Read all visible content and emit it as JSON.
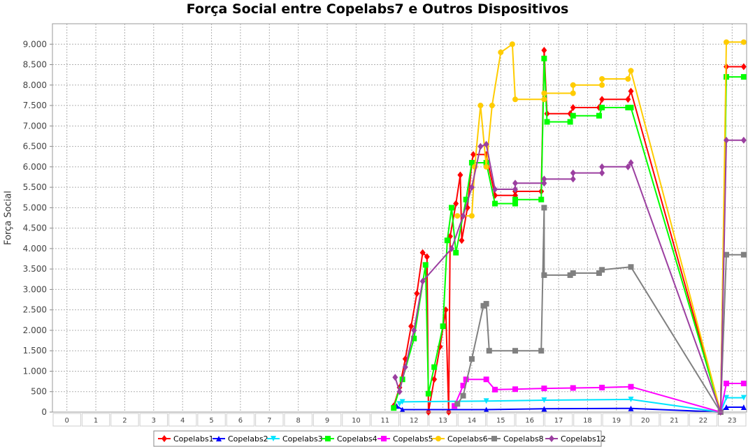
{
  "chart_data": {
    "type": "line",
    "title": "Força Social entre Copelabs7 e Outros Dispositivos",
    "xlabel": "",
    "ylabel": "Força Social",
    "xlim": [
      -0.5,
      23.5
    ],
    "ylim": [
      0,
      9500
    ],
    "x_ticks": [
      "0",
      "1",
      "2",
      "3",
      "4",
      "5",
      "6",
      "7",
      "8",
      "9",
      "10",
      "11",
      "12",
      "13",
      "14",
      "15",
      "16",
      "17",
      "18",
      "19",
      "20",
      "21",
      "22",
      "23"
    ],
    "y_ticks": [
      0,
      500,
      1000,
      1500,
      2000,
      2500,
      3000,
      3500,
      4000,
      4500,
      5000,
      5500,
      6000,
      6500,
      7000,
      7500,
      8000,
      8500,
      9000
    ],
    "y_tick_labels": [
      "0",
      "500",
      "1.000",
      "1.500",
      "2.000",
      "2.500",
      "3.000",
      "3.500",
      "4.000",
      "4.500",
      "5.000",
      "5.500",
      "6.000",
      "6.500",
      "7.000",
      "7.500",
      "8.000",
      "8.500",
      "9.000"
    ],
    "grid": true,
    "legend_position": "bottom",
    "series": [
      {
        "name": "Copelabs1",
        "color": "#ff0000",
        "marker": "diamond",
        "points": [
          [
            11.3,
            150
          ],
          [
            11.5,
            600
          ],
          [
            11.7,
            1300
          ],
          [
            11.9,
            2100
          ],
          [
            12.1,
            2900
          ],
          [
            12.3,
            3900
          ],
          [
            12.45,
            3800
          ],
          [
            12.5,
            0
          ],
          [
            12.7,
            800
          ],
          [
            12.9,
            1600
          ],
          [
            13.1,
            2500
          ],
          [
            13.2,
            0
          ],
          [
            13.25,
            4300
          ],
          [
            13.45,
            5100
          ],
          [
            13.6,
            5800
          ],
          [
            13.65,
            4200
          ],
          [
            13.85,
            5000
          ],
          [
            14.0,
            6100
          ],
          [
            14.05,
            6300
          ],
          [
            14.5,
            6300
          ],
          [
            14.8,
            5300
          ],
          [
            15.5,
            5300
          ],
          [
            15.5,
            5400
          ],
          [
            16.4,
            5400
          ],
          [
            16.5,
            8850
          ],
          [
            16.6,
            7300
          ],
          [
            17.4,
            7300
          ],
          [
            17.5,
            7450
          ],
          [
            18.4,
            7450
          ],
          [
            18.5,
            7650
          ],
          [
            19.4,
            7650
          ],
          [
            19.5,
            7850
          ],
          [
            22.6,
            0
          ],
          [
            22.8,
            8450
          ],
          [
            23.4,
            8450
          ]
        ]
      },
      {
        "name": "Copelabs2",
        "color": "#0000ff",
        "marker": "triangle",
        "points": [
          [
            11.4,
            150
          ],
          [
            11.6,
            60
          ],
          [
            14.5,
            60
          ],
          [
            16.5,
            80
          ],
          [
            19.5,
            90
          ],
          [
            22.6,
            0
          ],
          [
            22.8,
            120
          ],
          [
            23.4,
            120
          ]
        ]
      },
      {
        "name": "Copelabs3",
        "color": "#00e5ff",
        "marker": "triangle-down",
        "points": [
          [
            11.5,
            200
          ],
          [
            11.6,
            250
          ],
          [
            14.5,
            270
          ],
          [
            16.5,
            290
          ],
          [
            19.5,
            310
          ],
          [
            22.6,
            0
          ],
          [
            22.8,
            350
          ],
          [
            23.4,
            350
          ]
        ]
      },
      {
        "name": "Copelabs4",
        "color": "#00ff00",
        "marker": "square",
        "points": [
          [
            11.3,
            100
          ],
          [
            11.6,
            800
          ],
          [
            12.0,
            1800
          ],
          [
            12.4,
            3600
          ],
          [
            12.5,
            450
          ],
          [
            12.7,
            1100
          ],
          [
            13.0,
            2100
          ],
          [
            13.15,
            4200
          ],
          [
            13.3,
            5000
          ],
          [
            13.45,
            3900
          ],
          [
            13.8,
            5200
          ],
          [
            14.0,
            6100
          ],
          [
            14.5,
            6100
          ],
          [
            14.8,
            5100
          ],
          [
            15.5,
            5100
          ],
          [
            15.5,
            5200
          ],
          [
            16.4,
            5200
          ],
          [
            16.5,
            8650
          ],
          [
            16.6,
            7100
          ],
          [
            17.4,
            7100
          ],
          [
            17.5,
            7250
          ],
          [
            18.4,
            7250
          ],
          [
            18.5,
            7450
          ],
          [
            19.4,
            7450
          ],
          [
            19.5,
            7450
          ],
          [
            22.6,
            0
          ],
          [
            22.8,
            8200
          ],
          [
            23.4,
            8200
          ]
        ]
      },
      {
        "name": "Copelabs5",
        "color": "#ff00ff",
        "marker": "square",
        "points": [
          [
            13.4,
            150
          ],
          [
            13.7,
            650
          ],
          [
            13.8,
            800
          ],
          [
            14.5,
            800
          ],
          [
            14.8,
            550
          ],
          [
            15.5,
            560
          ],
          [
            16.5,
            580
          ],
          [
            17.5,
            590
          ],
          [
            18.5,
            600
          ],
          [
            19.5,
            620
          ],
          [
            22.6,
            0
          ],
          [
            22.8,
            700
          ],
          [
            23.4,
            700
          ]
        ]
      },
      {
        "name": "Copelabs6",
        "color": "#ffcc00",
        "marker": "circle",
        "points": [
          [
            13.5,
            4800
          ],
          [
            14.0,
            4800
          ],
          [
            14.1,
            6000
          ],
          [
            14.3,
            7500
          ],
          [
            14.5,
            6000
          ],
          [
            14.7,
            7500
          ],
          [
            15.0,
            8800
          ],
          [
            15.4,
            9000
          ],
          [
            15.5,
            7650
          ],
          [
            16.5,
            7650
          ],
          [
            16.5,
            7800
          ],
          [
            17.5,
            7800
          ],
          [
            17.5,
            8000
          ],
          [
            18.5,
            8000
          ],
          [
            18.5,
            8150
          ],
          [
            19.4,
            8150
          ],
          [
            19.5,
            8350
          ],
          [
            22.6,
            0
          ],
          [
            22.8,
            9050
          ],
          [
            23.4,
            9050
          ]
        ]
      },
      {
        "name": "Copelabs8",
        "color": "#808080",
        "marker": "square",
        "points": [
          [
            13.5,
            200
          ],
          [
            13.7,
            400
          ],
          [
            14.0,
            1300
          ],
          [
            14.4,
            2600
          ],
          [
            14.5,
            2650
          ],
          [
            14.6,
            1500
          ],
          [
            15.5,
            1500
          ],
          [
            16.4,
            1500
          ],
          [
            16.5,
            5000
          ],
          [
            16.5,
            3350
          ],
          [
            17.4,
            3350
          ],
          [
            17.5,
            3400
          ],
          [
            18.4,
            3400
          ],
          [
            18.5,
            3480
          ],
          [
            19.5,
            3550
          ],
          [
            22.6,
            0
          ],
          [
            22.8,
            3850
          ],
          [
            23.4,
            3850
          ]
        ]
      },
      {
        "name": "Copelabs12",
        "color": "#9b3fa0",
        "marker": "diamond",
        "points": [
          [
            11.35,
            850
          ],
          [
            11.5,
            500
          ],
          [
            11.7,
            1100
          ],
          [
            12.0,
            2000
          ],
          [
            12.3,
            3200
          ],
          [
            13.3,
            4000
          ],
          [
            13.7,
            4800
          ],
          [
            14.0,
            5500
          ],
          [
            14.3,
            6500
          ],
          [
            14.5,
            6550
          ],
          [
            14.8,
            5450
          ],
          [
            15.5,
            5450
          ],
          [
            15.5,
            5600
          ],
          [
            16.5,
            5600
          ],
          [
            16.5,
            5700
          ],
          [
            17.5,
            5700
          ],
          [
            17.5,
            5850
          ],
          [
            18.5,
            5850
          ],
          [
            18.5,
            6000
          ],
          [
            19.4,
            6000
          ],
          [
            19.5,
            6100
          ],
          [
            22.6,
            0
          ],
          [
            22.8,
            6650
          ],
          [
            23.4,
            6650
          ]
        ]
      }
    ]
  }
}
